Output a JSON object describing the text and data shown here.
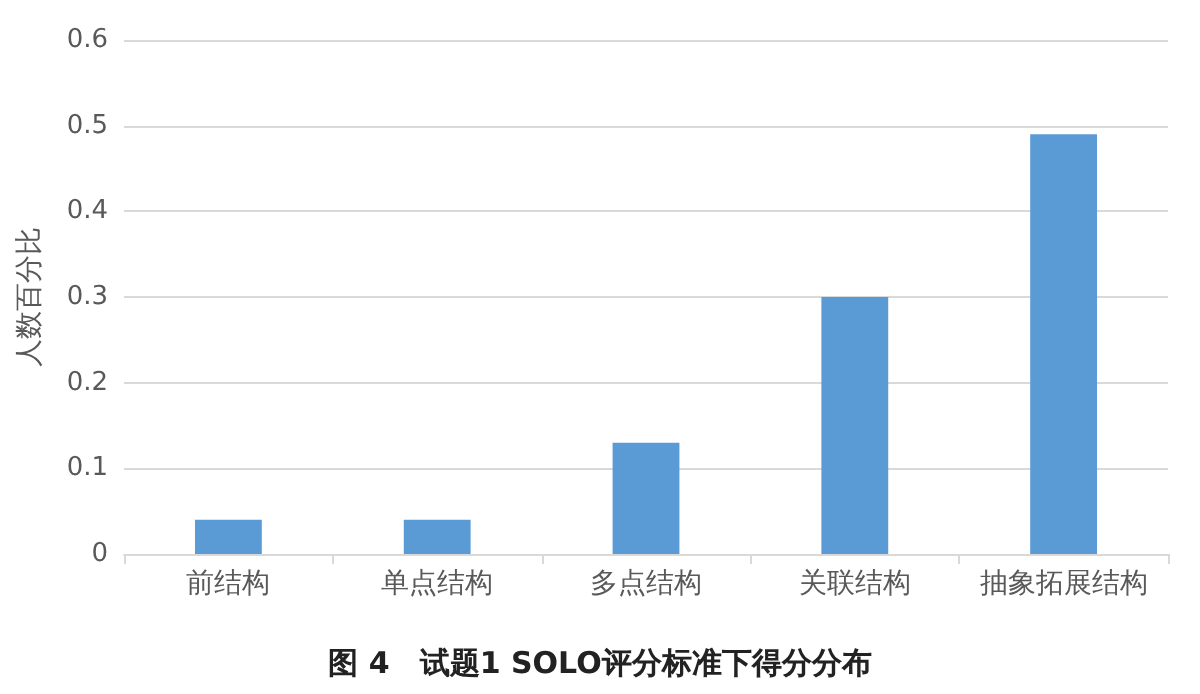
{
  "chart_data": {
    "type": "bar",
    "ylabel": "人数百分比",
    "categories": [
      "前结构",
      "单点结构",
      "多点结构",
      "关联结构",
      "抽象拓展结构"
    ],
    "values": [
      0.04,
      0.04,
      0.13,
      0.3,
      0.49
    ],
    "color": "#5b9bd5",
    "ylim": [
      0,
      0.6
    ],
    "yticks": [
      0,
      0.1,
      0.2,
      0.3,
      0.4,
      0.5,
      0.6
    ],
    "grid": "y",
    "annotations": [
      "图 4　试题1 SOLO评分标准下得分分布"
    ]
  }
}
